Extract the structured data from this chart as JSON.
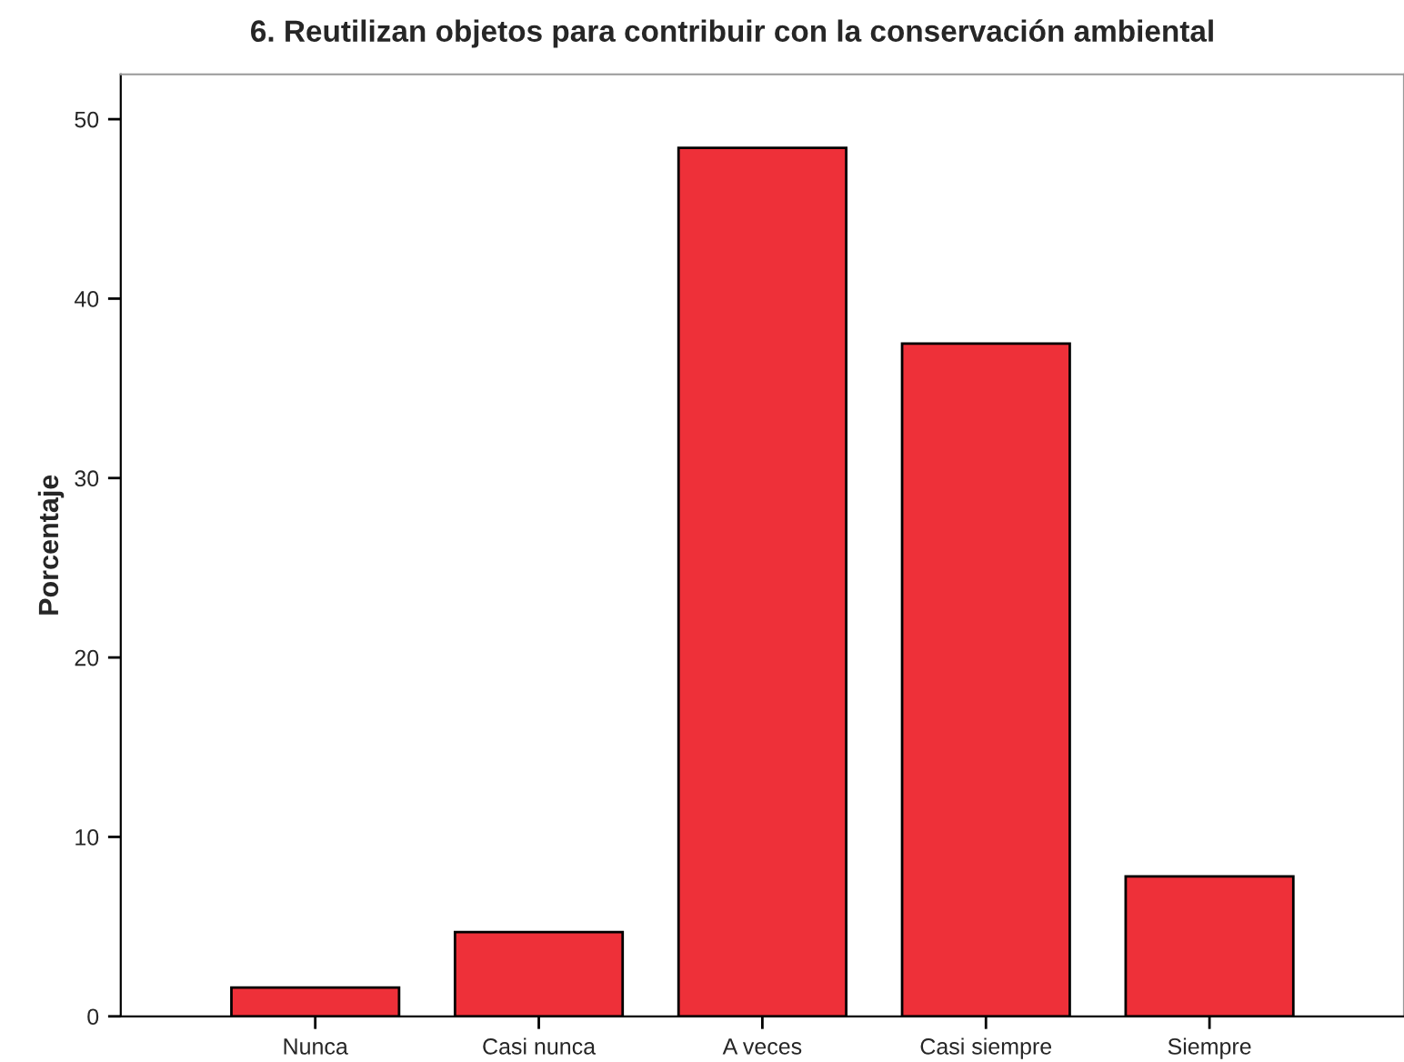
{
  "chart_data": {
    "type": "bar",
    "title": "6. Reutilizan objetos para contribuir con la conservación ambiental",
    "ylabel": "Porcentaje",
    "categories": [
      "Nunca",
      "Casi nunca",
      "A veces",
      "Casi siempre",
      "Siempre"
    ],
    "values": [
      1.6,
      4.7,
      48.4,
      37.5,
      7.8
    ],
    "color": "#ee3039",
    "ylim": [
      0,
      52.5
    ],
    "yticks": [
      0,
      10,
      20,
      30,
      40,
      50
    ],
    "grid": false
  }
}
